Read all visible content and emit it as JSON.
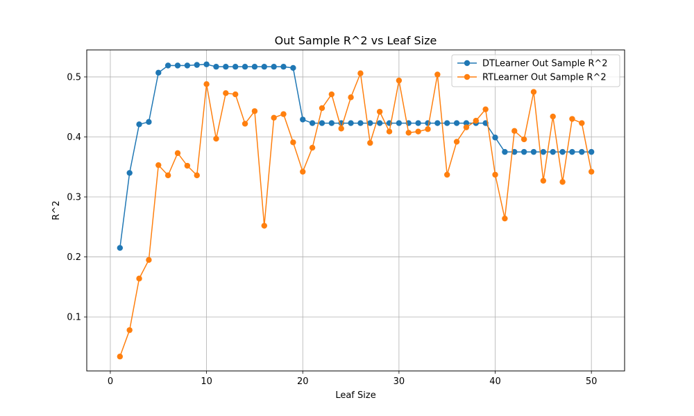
{
  "chart_data": {
    "type": "line",
    "title": "Out Sample R^2 vs Leaf Size",
    "xlabel": "Leaf Size",
    "ylabel": "R^2",
    "xlim": [
      -2.45,
      53.45
    ],
    "ylim": [
      0.01,
      0.545
    ],
    "xticks": [
      0,
      10,
      20,
      30,
      40,
      50
    ],
    "yticks": [
      0.1,
      0.2,
      0.3,
      0.4,
      0.5
    ],
    "xtick_labels": [
      "0",
      "10",
      "20",
      "30",
      "40",
      "50"
    ],
    "ytick_labels": [
      "0.1",
      "0.2",
      "0.3",
      "0.4",
      "0.5"
    ],
    "grid": true,
    "legend_position": "top-right",
    "x": [
      1,
      2,
      3,
      4,
      5,
      6,
      7,
      8,
      9,
      10,
      11,
      12,
      13,
      14,
      15,
      16,
      17,
      18,
      19,
      20,
      21,
      22,
      23,
      24,
      25,
      26,
      27,
      28,
      29,
      30,
      31,
      32,
      33,
      34,
      35,
      36,
      37,
      38,
      39,
      40,
      41,
      42,
      43,
      44,
      45,
      46,
      47,
      48,
      49,
      50
    ],
    "series": [
      {
        "name": "DTLearner Out Sample R^2",
        "color": "#1f77b4",
        "values": [
          0.215,
          0.34,
          0.421,
          0.425,
          0.507,
          0.519,
          0.519,
          0.519,
          0.52,
          0.521,
          0.517,
          0.517,
          0.517,
          0.517,
          0.517,
          0.517,
          0.517,
          0.517,
          0.515,
          0.429,
          0.423,
          0.423,
          0.423,
          0.423,
          0.423,
          0.423,
          0.423,
          0.423,
          0.423,
          0.423,
          0.423,
          0.423,
          0.423,
          0.423,
          0.423,
          0.423,
          0.423,
          0.423,
          0.423,
          0.399,
          0.375,
          0.375,
          0.375,
          0.375,
          0.375,
          0.375,
          0.375,
          0.375,
          0.375,
          0.375
        ]
      },
      {
        "name": "RTLearner Out Sample R^2",
        "color": "#ff7f0e",
        "values": [
          0.034,
          0.078,
          0.164,
          0.195,
          0.353,
          0.336,
          0.373,
          0.352,
          0.336,
          0.488,
          0.397,
          0.473,
          0.471,
          0.422,
          0.443,
          0.252,
          0.432,
          0.438,
          0.391,
          0.342,
          0.382,
          0.448,
          0.471,
          0.414,
          0.466,
          0.506,
          0.39,
          0.442,
          0.409,
          0.494,
          0.407,
          0.409,
          0.413,
          0.504,
          0.337,
          0.392,
          0.416,
          0.427,
          0.446,
          0.337,
          0.264,
          0.41,
          0.396,
          0.475,
          0.327,
          0.434,
          0.325,
          0.43,
          0.423,
          0.342
        ]
      }
    ]
  }
}
